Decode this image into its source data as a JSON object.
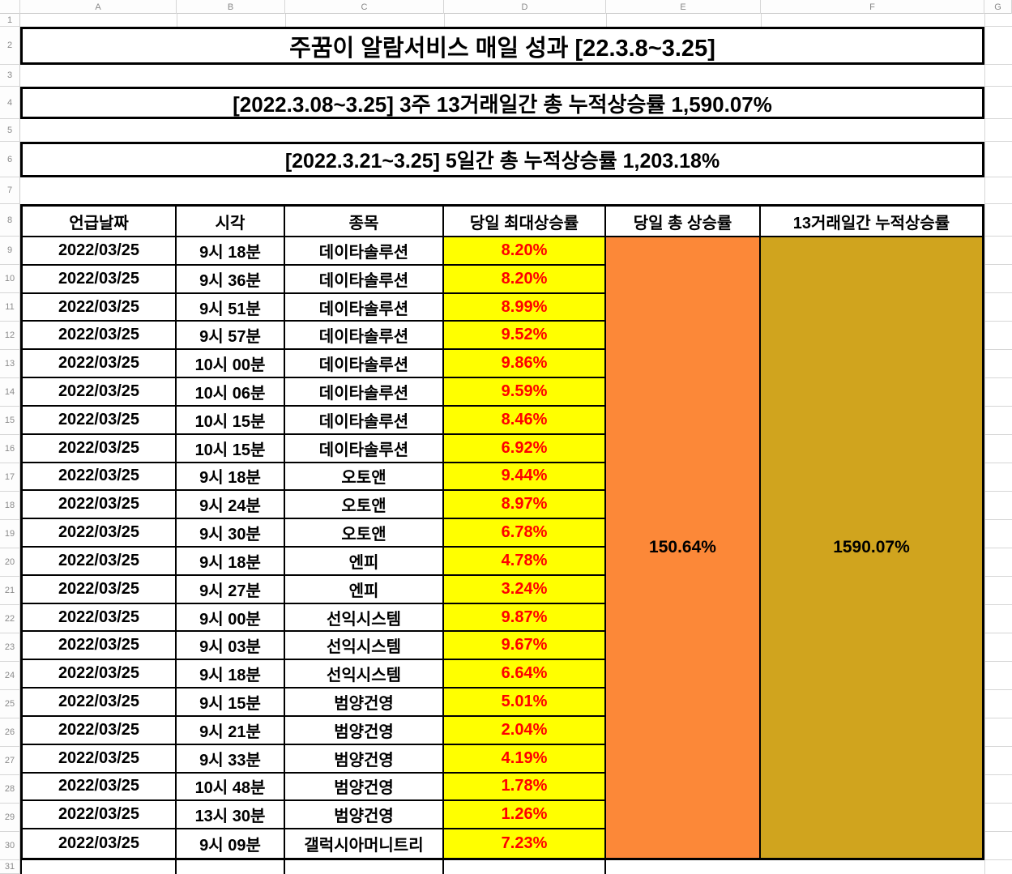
{
  "sheet": {
    "column_headers": [
      "A",
      "B",
      "C",
      "D",
      "E",
      "F",
      "G"
    ],
    "row_numbers": [
      "1",
      "2",
      "3",
      "4",
      "5",
      "6",
      "7",
      "8",
      "9",
      "10",
      "11",
      "12",
      "13",
      "14",
      "15",
      "16",
      "17",
      "18",
      "19",
      "20",
      "21",
      "22",
      "23",
      "24",
      "25",
      "26",
      "27",
      "28",
      "29",
      "30",
      "31"
    ]
  },
  "titles": {
    "main": "주꿈이 알람서비스 매일 성과 [22.3.8~3.25]",
    "subtitle1": "[2022.3.08~3.25] 3주 13거래일간 총 누적상승률 1,590.07%",
    "subtitle2": "[2022.3.21~3.25] 5일간 총 누적상승률 1,203.18%"
  },
  "table": {
    "headers": [
      "언급날짜",
      "시각",
      "종목",
      "당일 최대상승률",
      "당일 총 상승률",
      "13거래일간 누적상승률"
    ],
    "rows": [
      [
        "2022/03/25",
        "9시 18분",
        "데이타솔루션",
        "8.20%"
      ],
      [
        "2022/03/25",
        "9시 36분",
        "데이타솔루션",
        "8.20%"
      ],
      [
        "2022/03/25",
        "9시 51분",
        "데이타솔루션",
        "8.99%"
      ],
      [
        "2022/03/25",
        "9시 57분",
        "데이타솔루션",
        "9.52%"
      ],
      [
        "2022/03/25",
        "10시 00분",
        "데이타솔루션",
        "9.86%"
      ],
      [
        "2022/03/25",
        "10시 06분",
        "데이타솔루션",
        "9.59%"
      ],
      [
        "2022/03/25",
        "10시 15분",
        "데이타솔루션",
        "8.46%"
      ],
      [
        "2022/03/25",
        "10시 15분",
        "데이타솔루션",
        "6.92%"
      ],
      [
        "2022/03/25",
        "9시 18분",
        "오토앤",
        "9.44%"
      ],
      [
        "2022/03/25",
        "9시 24분",
        "오토앤",
        "8.97%"
      ],
      [
        "2022/03/25",
        "9시 30분",
        "오토앤",
        "6.78%"
      ],
      [
        "2022/03/25",
        "9시 18분",
        "엔피",
        "4.78%"
      ],
      [
        "2022/03/25",
        "9시 27분",
        "엔피",
        "3.24%"
      ],
      [
        "2022/03/25",
        "9시 00분",
        "선익시스템",
        "9.87%"
      ],
      [
        "2022/03/25",
        "9시 03분",
        "선익시스템",
        "9.67%"
      ],
      [
        "2022/03/25",
        "9시 18분",
        "선익시스템",
        "6.64%"
      ],
      [
        "2022/03/25",
        "9시 15분",
        "범양건영",
        "5.01%"
      ],
      [
        "2022/03/25",
        "9시 21분",
        "범양건영",
        "2.04%"
      ],
      [
        "2022/03/25",
        "9시 33분",
        "범양건영",
        "4.19%"
      ],
      [
        "2022/03/25",
        "10시 48분",
        "범양건영",
        "1.78%"
      ],
      [
        "2022/03/25",
        "13시 30분",
        "범양건영",
        "1.26%"
      ],
      [
        "2022/03/25",
        "9시 09분",
        "갤럭시아머니트리",
        "7.23%"
      ]
    ],
    "daily_total": "150.64%",
    "cumulative_13d": "1590.07%"
  },
  "colors": {
    "highlight_yellow": "#FFFF00",
    "pct_red": "#FF0000",
    "daily_total_orange": "#FC8838",
    "cumulative_gold": "#D0A41E"
  }
}
